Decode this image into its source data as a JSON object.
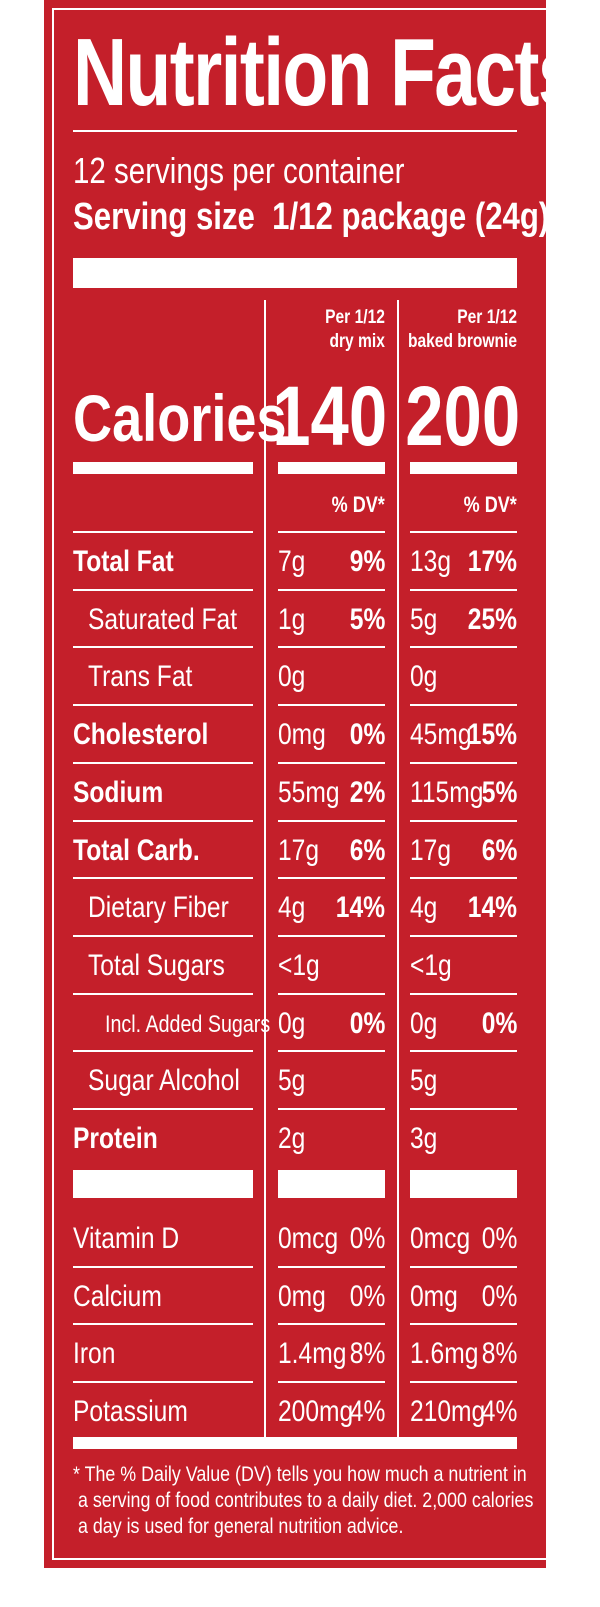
{
  "title": "Nutrition Facts",
  "servings_per_container": "12 servings per container",
  "serving_size_label": "Serving size",
  "serving_size_value": "1/12 package (24g)",
  "columns": [
    {
      "line1": "Per 1/12",
      "line2": "dry mix",
      "calories": "140"
    },
    {
      "line1": "Per 1/12",
      "line2": "baked brownie",
      "calories": "200"
    }
  ],
  "calories_label": "Calories",
  "dv_header": "% DV*",
  "nutrients": [
    {
      "name": "Total Fat",
      "bold": true,
      "indent": 0,
      "c1": "7g",
      "p1": "9%",
      "c2": "13g",
      "p2": "17%"
    },
    {
      "name": "Saturated Fat",
      "bold": false,
      "indent": 1,
      "c1": "1g",
      "p1": "5%",
      "c2": "5g",
      "p2": "25%"
    },
    {
      "name": "Trans Fat",
      "bold": false,
      "indent": 1,
      "c1": "0g",
      "p1": "",
      "c2": "0g",
      "p2": ""
    },
    {
      "name": "Cholesterol",
      "bold": true,
      "indent": 0,
      "c1": "0mg",
      "p1": "0%",
      "c2": "45mg",
      "p2": "15%"
    },
    {
      "name": "Sodium",
      "bold": true,
      "indent": 0,
      "c1": "55mg",
      "p1": "2%",
      "c2": "115mg",
      "p2": "5%"
    },
    {
      "name": "Total Carb.",
      "bold": true,
      "indent": 0,
      "c1": "17g",
      "p1": "6%",
      "c2": "17g",
      "p2": "6%"
    },
    {
      "name": "Dietary Fiber",
      "bold": false,
      "indent": 1,
      "c1": "4g",
      "p1": "14%",
      "c2": "4g",
      "p2": "14%"
    },
    {
      "name": "Total Sugars",
      "bold": false,
      "indent": 1,
      "c1": "<1g",
      "p1": "",
      "c2": "<1g",
      "p2": ""
    },
    {
      "name": "Incl. Added Sugars",
      "bold": false,
      "indent": 2,
      "c1": "0g",
      "p1": "0%",
      "c2": "0g",
      "p2": "0%"
    },
    {
      "name": "Sugar Alcohol",
      "bold": false,
      "indent": 1,
      "c1": "5g",
      "p1": "",
      "c2": "5g",
      "p2": ""
    },
    {
      "name": "Protein",
      "bold": true,
      "indent": 0,
      "c1": "2g",
      "p1": "",
      "c2": "3g",
      "p2": ""
    }
  ],
  "vitamins": [
    {
      "name": "Vitamin D",
      "c1": "0mcg",
      "p1": "0%",
      "c2": "0mcg",
      "p2": "0%"
    },
    {
      "name": "Calcium",
      "c1": "0mg",
      "p1": "0%",
      "c2": "0mg",
      "p2": "0%"
    },
    {
      "name": "Iron",
      "c1": "1.4mg",
      "p1": "8%",
      "c2": "1.6mg",
      "p2": "8%"
    },
    {
      "name": "Potassium",
      "c1": "200mg",
      "p1": "4%",
      "c2": "210mg",
      "p2": "4%"
    }
  ],
  "footnote": [
    "* The % Daily Value (DV) tells you how much a nutrient in",
    "a serving of food contributes to a daily diet. 2,000 calories",
    "a day is used for general nutrition advice."
  ],
  "colors": {
    "background": "#c41f2a",
    "text": "#ffffff"
  }
}
